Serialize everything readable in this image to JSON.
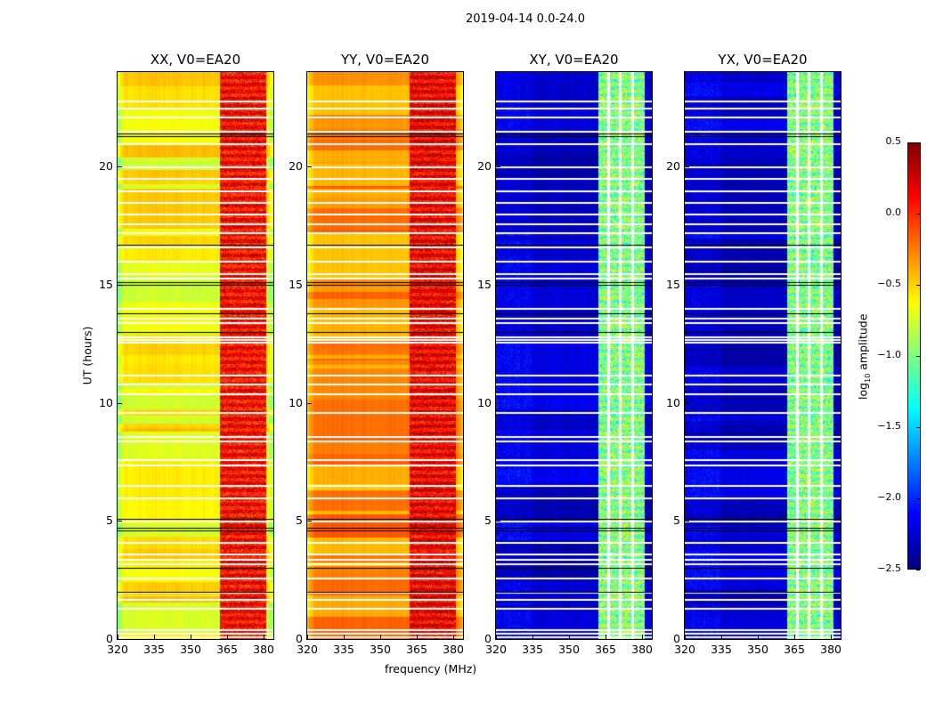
{
  "chart_data": {
    "type": "heatmap",
    "title": "2019-04-14 0.0-24.0",
    "xlabel": "frequency (MHz)",
    "ylabel": "UT (hours)",
    "xlim": [
      320,
      384
    ],
    "ylim": [
      0,
      24
    ],
    "xticks": [
      "320",
      "335",
      "350",
      "365",
      "380"
    ],
    "yticks": [
      "0",
      "5",
      "10",
      "15",
      "20"
    ],
    "panels": [
      {
        "title": "XX, V0=EA20",
        "baseline_log10_amp": -0.6,
        "rfi_band_mhz": [
          362,
          381
        ],
        "rfi_log10_amp": 0.1
      },
      {
        "title": "YY, V0=EA20",
        "baseline_log10_amp": -0.3,
        "rfi_band_mhz": [
          362,
          381
        ],
        "rfi_log10_amp": 0.15
      },
      {
        "title": "XY, V0=EA20",
        "baseline_log10_amp": -2.35,
        "rfi_band_mhz": [
          362,
          381
        ],
        "rfi_log10_amp": -1.0
      },
      {
        "title": "YX, V0=EA20",
        "baseline_log10_amp": -2.35,
        "rfi_band_mhz": [
          362,
          381
        ],
        "rfi_log10_amp": -1.0
      }
    ],
    "flagged_hours": [
      0.1,
      0.25,
      0.4,
      1.3,
      1.7,
      2.0,
      2.6,
      3.2,
      3.4,
      3.6,
      4.1,
      5.0,
      6.0,
      6.5,
      7.4,
      7.6,
      8.4,
      8.6,
      9.6,
      10.4,
      10.8,
      11.2,
      12.6,
      12.7,
      12.8,
      13.4,
      13.6,
      14.0,
      15.3,
      15.5,
      16.0,
      16.6,
      17.2,
      17.6,
      18.0,
      18.5,
      19.0,
      19.5,
      20.0,
      21.0,
      21.5,
      22.1,
      22.5,
      22.8
    ],
    "dark_rows_hours": [
      2.0,
      3.0,
      4.6,
      4.7,
      5.1,
      13.0,
      13.8,
      15.0,
      15.1,
      16.7,
      21.3,
      21.4
    ],
    "colorbar": {
      "label": "log10 amplitude",
      "label_main": "log",
      "label_sub": "10",
      "label_rest": " amplitude",
      "range": [
        -2.5,
        0.5
      ],
      "ticks": [
        "0.5",
        "0.0",
        "−0.5",
        "−1.0",
        "−1.5",
        "−2.0",
        "−2.5"
      ],
      "colormap": "jet"
    }
  }
}
